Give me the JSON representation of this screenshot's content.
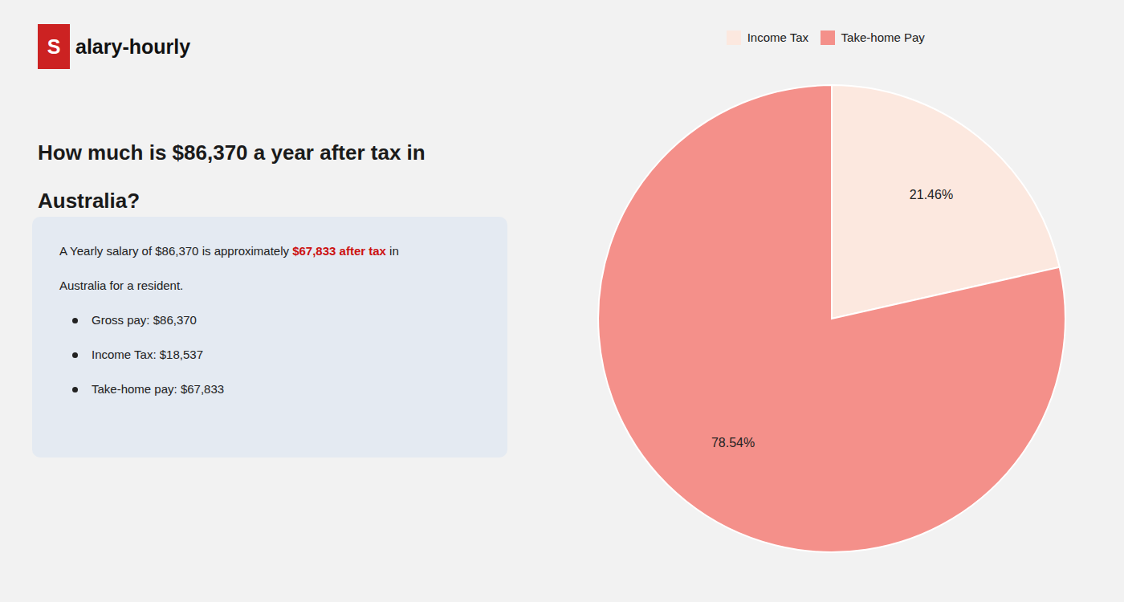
{
  "chart_data": {
    "type": "pie",
    "title": "How much is $86,370 a year after tax in\nAustralia?",
    "categories": [
      "Income Tax",
      "Take-home Pay"
    ],
    "values": [
      21.46,
      78.54
    ],
    "value_labels": [
      "21.46%",
      "78.54%"
    ],
    "colors": [
      "#fce8df",
      "#f4908a"
    ],
    "data_labels": true,
    "legend": "top",
    "annotations": [
      {
        "runs": [
          {
            "text": "S",
            "color": "#cc2222"
          },
          {
            "text": "alary-hourly",
            "color": "#111111"
          }
        ],
        "marker": "logo"
      },
      {
        "runs": [
          {
            "text": "A Yearly salary of $86,370 is approximately ",
            "color": "#222222"
          },
          {
            "text": "$67,833 after tax",
            "color": "#cc1111"
          },
          {
            "text": " in",
            "color": "#222222"
          }
        ]
      },
      {
        "runs": [
          {
            "text": "Australia for a resident.",
            "color": "#222222"
          }
        ]
      },
      {
        "runs": [
          {
            "text": "Gross pay: $86,370",
            "color": "#222222"
          }
        ],
        "marker": "bullet"
      },
      {
        "runs": [
          {
            "text": "Income Tax: $18,537",
            "color": "#222222"
          }
        ],
        "marker": "bullet"
      },
      {
        "runs": [
          {
            "text": "Take-home pay: $67,833",
            "color": "#222222"
          }
        ],
        "marker": "bullet"
      }
    ]
  }
}
